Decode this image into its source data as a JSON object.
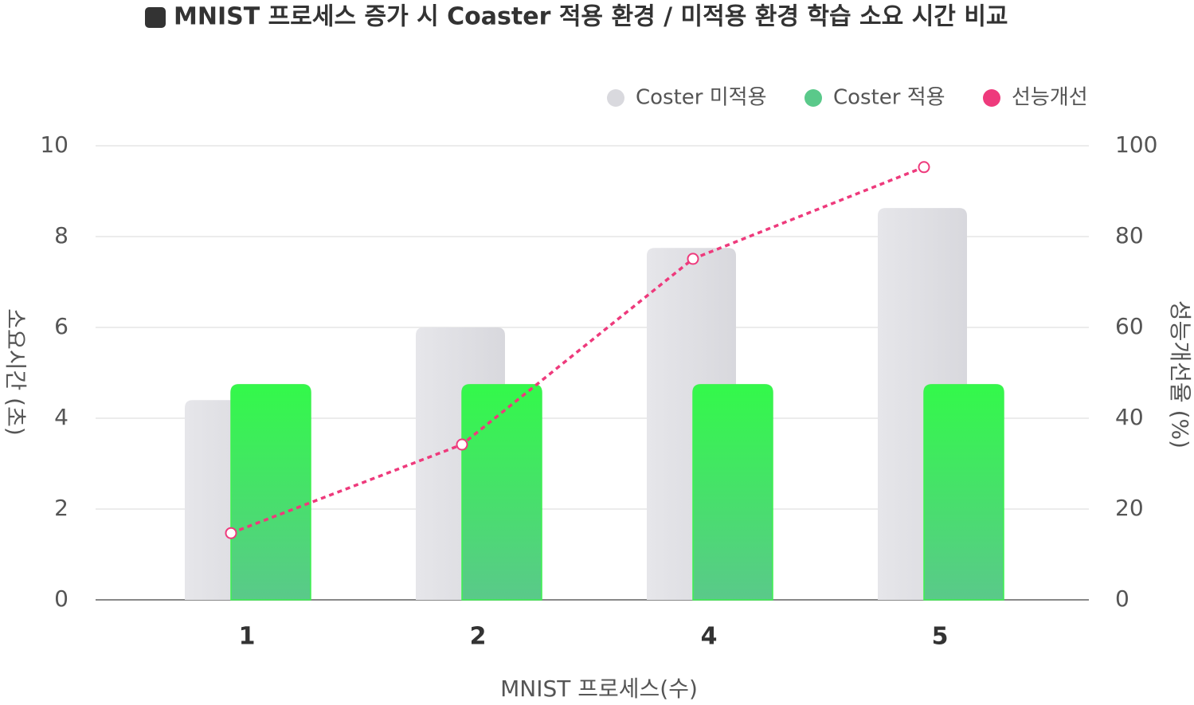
{
  "chart_data": {
    "type": "bar-line",
    "title": "MNIST 프로세스 증가 시 Coaster 적용 환경 / 미적용 환경 학습 소요 시간 비교",
    "x_label": "MNIST 프로세스(수)",
    "y_label": "소요시간 (초)",
    "y2_label": "성능개선율 (%)",
    "categories": [
      "1",
      "2",
      "4",
      "5"
    ],
    "series": [
      {
        "name": "Coster 미적용",
        "color": "#e2e2e6",
        "values": [
          4.4,
          6.0,
          7.75,
          8.63
        ]
      },
      {
        "name": "Coster 적용",
        "color": "#3cf24f",
        "values": [
          4.74,
          4.74,
          4.74,
          4.74
        ]
      },
      {
        "name": "선능개선",
        "color": "#ee3a7c",
        "axis": "y2",
        "values": [
          14.7,
          34.2,
          75.1,
          95.3
        ]
      }
    ],
    "ylim": [
      0,
      10
    ],
    "yticks": [
      0,
      2,
      4,
      6,
      8,
      10
    ],
    "y2lim": [
      0,
      100
    ],
    "y2ticks": [
      0,
      20,
      40,
      60,
      80,
      100
    ],
    "grid": true,
    "legend": "top-right"
  }
}
